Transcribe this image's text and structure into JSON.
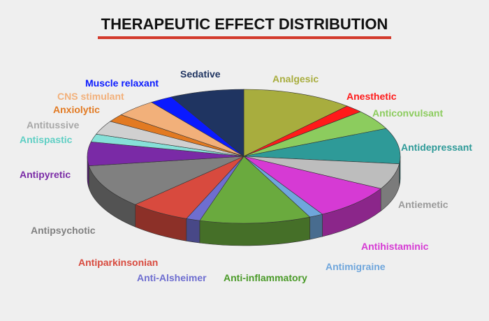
{
  "chart_data": {
    "type": "pie",
    "title": "THERAPEUTIC EFFECT DISTRIBUTION",
    "style": "3d-tilted",
    "slices": [
      {
        "label": "Analgesic",
        "value": 12.0,
        "color": "#a8ad3e"
      },
      {
        "label": "Anesthetic",
        "value": 2.0,
        "color": "#ff1a1a"
      },
      {
        "label": "Anticonvulsant",
        "value": 5.0,
        "color": "#8ccc5e"
      },
      {
        "label": "Antidepressant",
        "value": 9.0,
        "color": "#2e9a98"
      },
      {
        "label": "Antiemetic",
        "value": 6.5,
        "color": "#bdbdbd"
      },
      {
        "label": "Antihistaminic",
        "value": 9.0,
        "color": "#d63ad4"
      },
      {
        "label": "Antimigraine",
        "value": 1.5,
        "color": "#6fa6dc"
      },
      {
        "label": "Anti-inflammatory",
        "value": 12.0,
        "color": "#6aaa3e"
      },
      {
        "label": "Anti-Alsheimer",
        "value": 1.5,
        "color": "#6e6ed0"
      },
      {
        "label": "Antiparkinsonian",
        "value": 6.5,
        "color": "#d84a3e"
      },
      {
        "label": "Antipsychotic",
        "value": 11.0,
        "color": "#808080"
      },
      {
        "label": "Antipyretic",
        "value": 6.0,
        "color": "#7a2aa6"
      },
      {
        "label": "Antispastic",
        "value": 2.0,
        "color": "#86e0d8"
      },
      {
        "label": "Antitussive",
        "value": 3.5,
        "color": "#d0d0d0"
      },
      {
        "label": "Anxiolytic",
        "value": 2.0,
        "color": "#e27a22"
      },
      {
        "label": "CNS  stimulant",
        "value": 4.5,
        "color": "#f2b07a"
      },
      {
        "label": "Muscle relaxant",
        "value": 2.5,
        "color": "#0a1aff"
      },
      {
        "label": "Sedative",
        "value": 8.0,
        "color": "#1f3461"
      }
    ],
    "label_colors": {
      "Analgesic": "#a8ad3e",
      "Anesthetic": "#ff1a1a",
      "Anticonvulsant": "#8ccc5e",
      "Antidepressant": "#2e9a98",
      "Antiemetic": "#9a9a9a",
      "Antihistaminic": "#d63ad4",
      "Antimigraine": "#6fa6dc",
      "Anti-inflammatory": "#4a9a28",
      "Anti-Alsheimer": "#6e6ed0",
      "Antiparkinsonian": "#d84a3e",
      "Antipsychotic": "#808080",
      "Antipyretic": "#7a2aa6",
      "Antispastic": "#5fcfc4",
      "Antitussive": "#a8a8a8",
      "Anxiolytic": "#e27a22",
      "CNS  stimulant": "#f2b07a",
      "Muscle relaxant": "#0a1aff",
      "Sedative": "#1f3461"
    },
    "legend": "none",
    "grid": false
  }
}
